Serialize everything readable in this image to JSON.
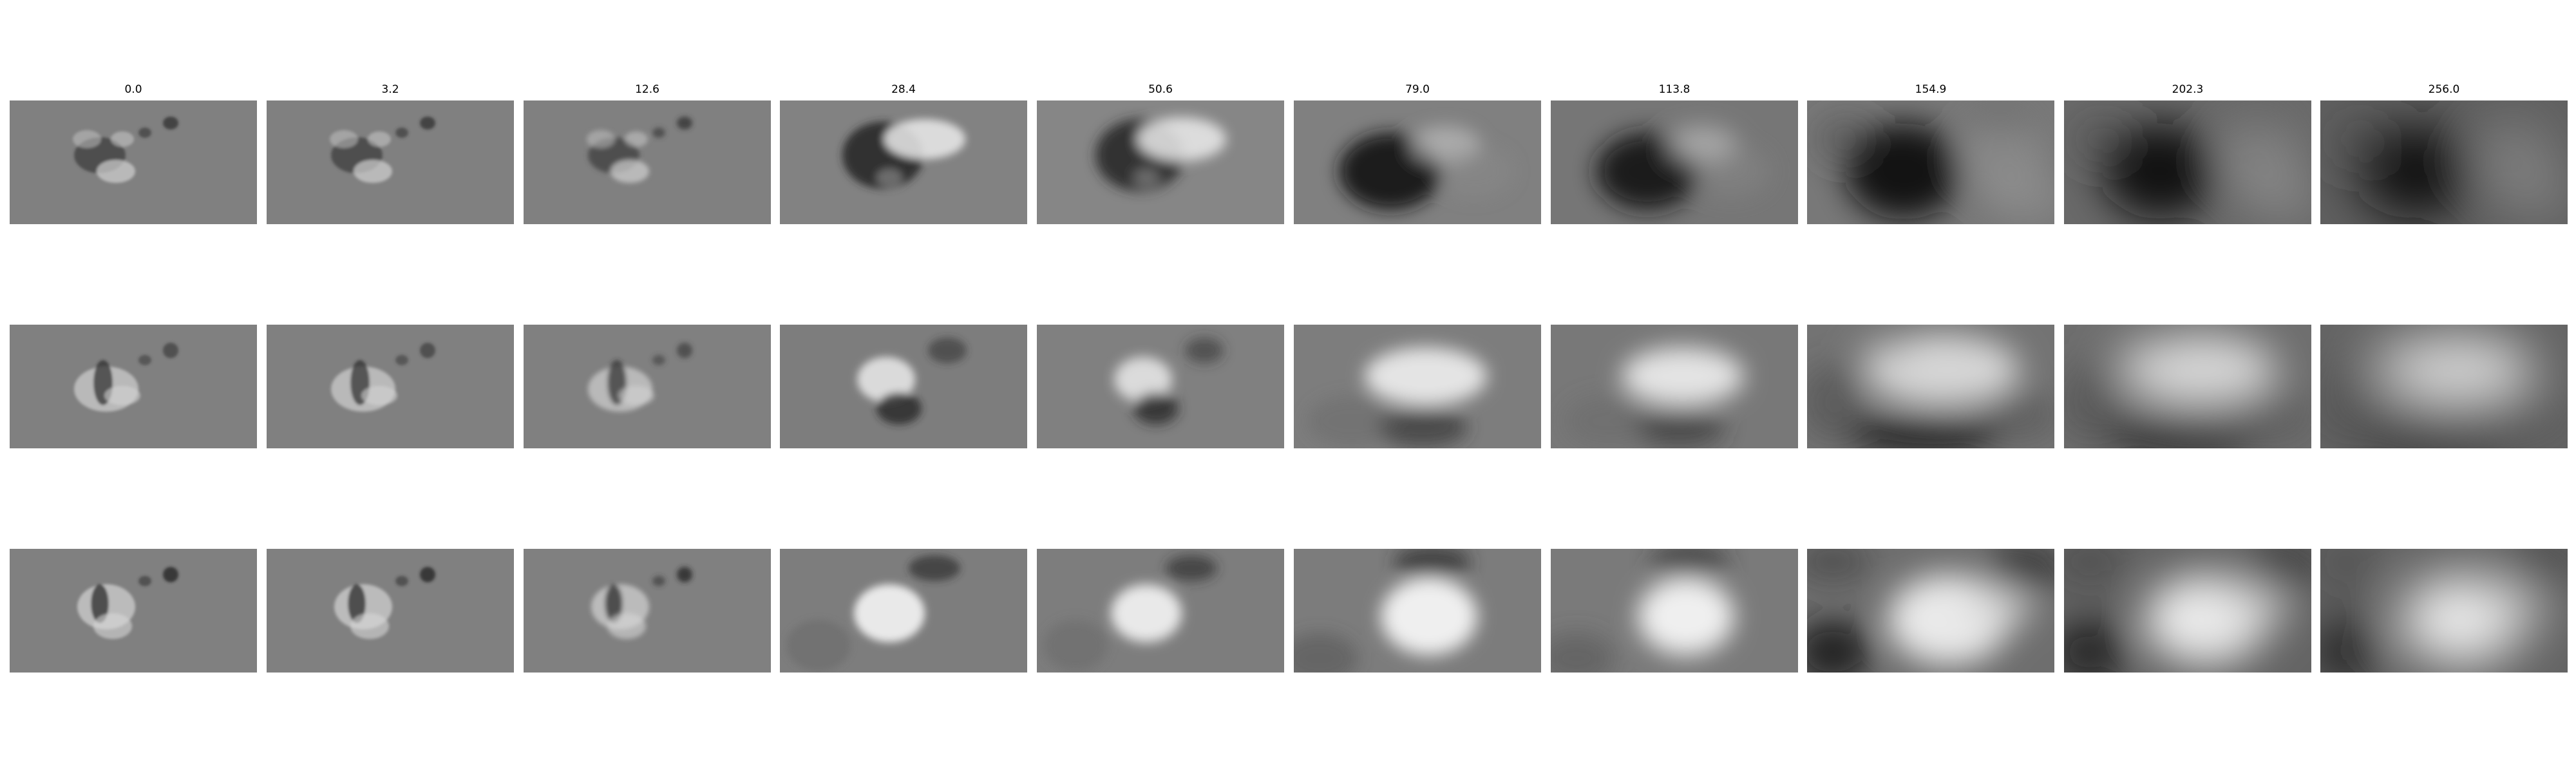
{
  "column_titles": [
    "0.0",
    "3.2",
    "12.6",
    "28.4",
    "50.6",
    "79.0",
    "113.8",
    "154.9",
    "202.3",
    "256.0"
  ],
  "rows": 3,
  "colormap": "grayscale",
  "background_gray": "#808080"
}
